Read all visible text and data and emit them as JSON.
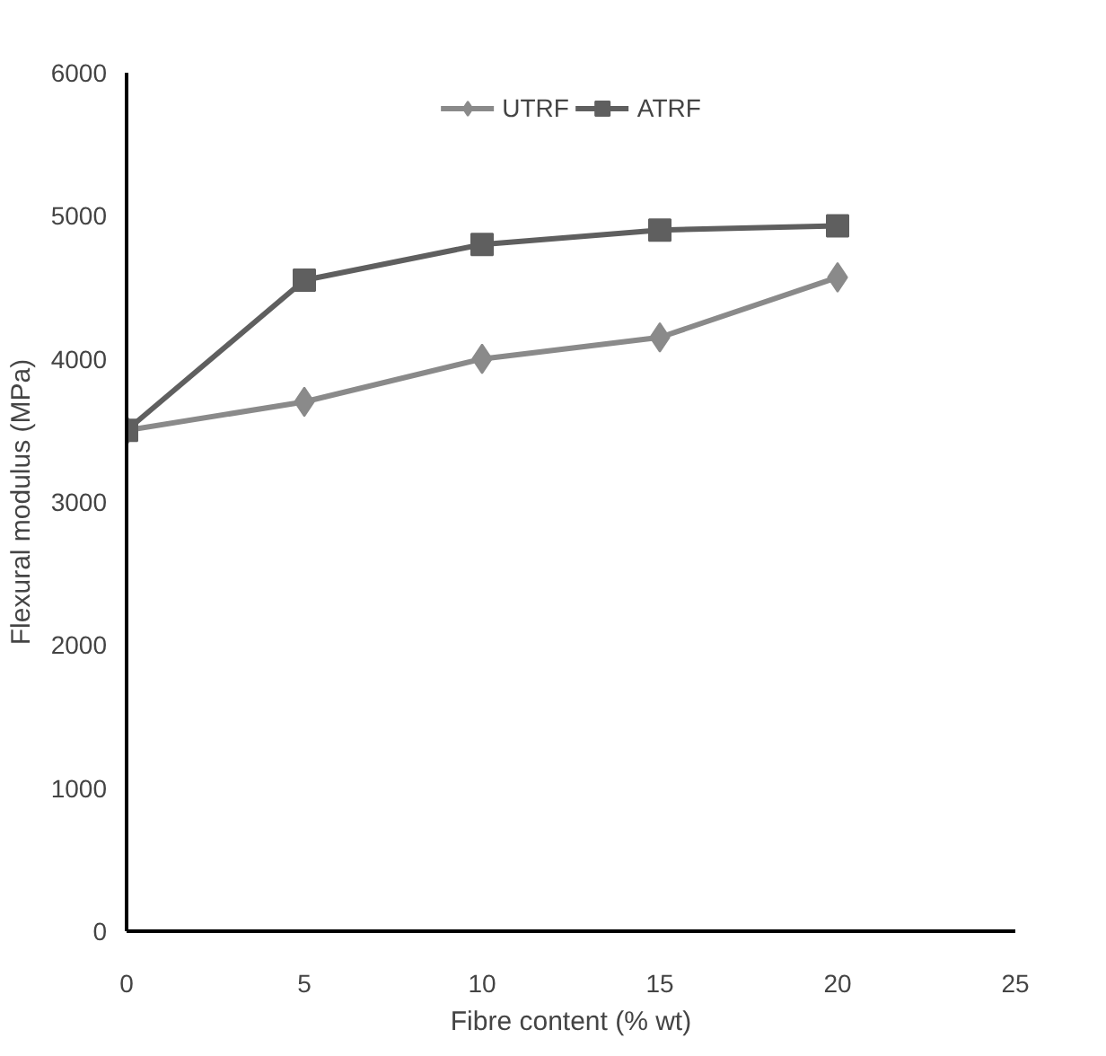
{
  "chart_data": {
    "type": "line",
    "xlabel": "Fibre content (% wt)",
    "ylabel": "Flexural modulus (MPa)",
    "x": [
      0,
      5,
      10,
      15,
      20
    ],
    "series": [
      {
        "name": "UTRF",
        "color": "#8a8a8a",
        "values": [
          3500,
          3700,
          4000,
          4150,
          4570
        ],
        "marker": "diamond"
      },
      {
        "name": "ATRF",
        "color": "#5f5f5f",
        "values": [
          3500,
          4550,
          4800,
          4900,
          4930
        ],
        "marker": "square"
      }
    ],
    "xlim": [
      0,
      25
    ],
    "xticks": [
      0,
      5,
      10,
      15,
      20,
      25
    ],
    "ylim": [
      0,
      6000
    ],
    "yticks": [
      0,
      1000,
      2000,
      3000,
      4000,
      5000,
      6000
    ],
    "grid": false,
    "legend": "top",
    "line_style": "solid"
  }
}
